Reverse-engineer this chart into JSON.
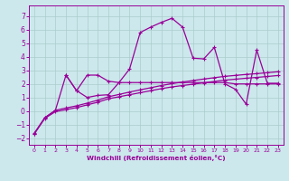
{
  "xlabel": "Windchill (Refroidissement éolien,°C)",
  "bg_color": "#cce8ec",
  "line_color": "#990099",
  "grid_color": "#aacccc",
  "xlim": [
    -0.5,
    23.5
  ],
  "ylim": [
    -2.5,
    7.8
  ],
  "xticks": [
    0,
    1,
    2,
    3,
    4,
    5,
    6,
    7,
    8,
    9,
    10,
    11,
    12,
    13,
    14,
    15,
    16,
    17,
    18,
    19,
    20,
    21,
    22,
    23
  ],
  "yticks": [
    -2,
    -1,
    0,
    1,
    2,
    3,
    4,
    5,
    6,
    7
  ],
  "curve_main_x": [
    0,
    1,
    2,
    3,
    4,
    5,
    6,
    7,
    8,
    9,
    10,
    11,
    12,
    13,
    14,
    15,
    16,
    17,
    18,
    19,
    20,
    21,
    22,
    23
  ],
  "curve_main_y": [
    -1.7,
    -0.5,
    0.05,
    2.65,
    1.5,
    1.0,
    1.15,
    1.2,
    2.1,
    3.1,
    5.8,
    6.2,
    6.55,
    6.85,
    6.2,
    3.9,
    3.85,
    4.7,
    2.0,
    1.6,
    0.5,
    4.5,
    2.05,
    2.05
  ],
  "curve_diag1_x": [
    0,
    1,
    2,
    3,
    4,
    5,
    6,
    7,
    8,
    9,
    10,
    11,
    12,
    13,
    14,
    15,
    16,
    17,
    18,
    19,
    20,
    21,
    22,
    23
  ],
  "curve_diag1_y": [
    -1.7,
    -0.55,
    -0.05,
    0.1,
    0.25,
    0.45,
    0.65,
    0.9,
    1.05,
    1.2,
    1.35,
    1.5,
    1.65,
    1.78,
    1.88,
    1.98,
    2.08,
    2.18,
    2.28,
    2.35,
    2.42,
    2.48,
    2.55,
    2.62
  ],
  "curve_diag2_x": [
    0,
    1,
    2,
    3,
    4,
    5,
    6,
    7,
    8,
    9,
    10,
    11,
    12,
    13,
    14,
    15,
    16,
    17,
    18,
    19,
    20,
    21,
    22,
    23
  ],
  "curve_diag2_y": [
    -1.65,
    -0.5,
    0.05,
    0.22,
    0.38,
    0.58,
    0.8,
    1.05,
    1.22,
    1.4,
    1.56,
    1.72,
    1.88,
    2.02,
    2.14,
    2.25,
    2.36,
    2.46,
    2.56,
    2.63,
    2.7,
    2.76,
    2.83,
    2.9
  ],
  "curve_horiz_x": [
    3,
    4,
    5,
    6,
    7,
    8,
    9,
    10,
    11,
    12,
    13,
    14,
    15,
    16,
    17,
    18,
    19,
    20,
    21,
    22,
    23
  ],
  "curve_horiz_y": [
    2.65,
    1.5,
    2.65,
    2.65,
    2.2,
    2.1,
    2.1,
    2.1,
    2.1,
    2.1,
    2.1,
    2.1,
    2.1,
    2.1,
    2.1,
    2.1,
    2.0,
    2.0,
    2.0,
    2.0,
    2.0
  ]
}
